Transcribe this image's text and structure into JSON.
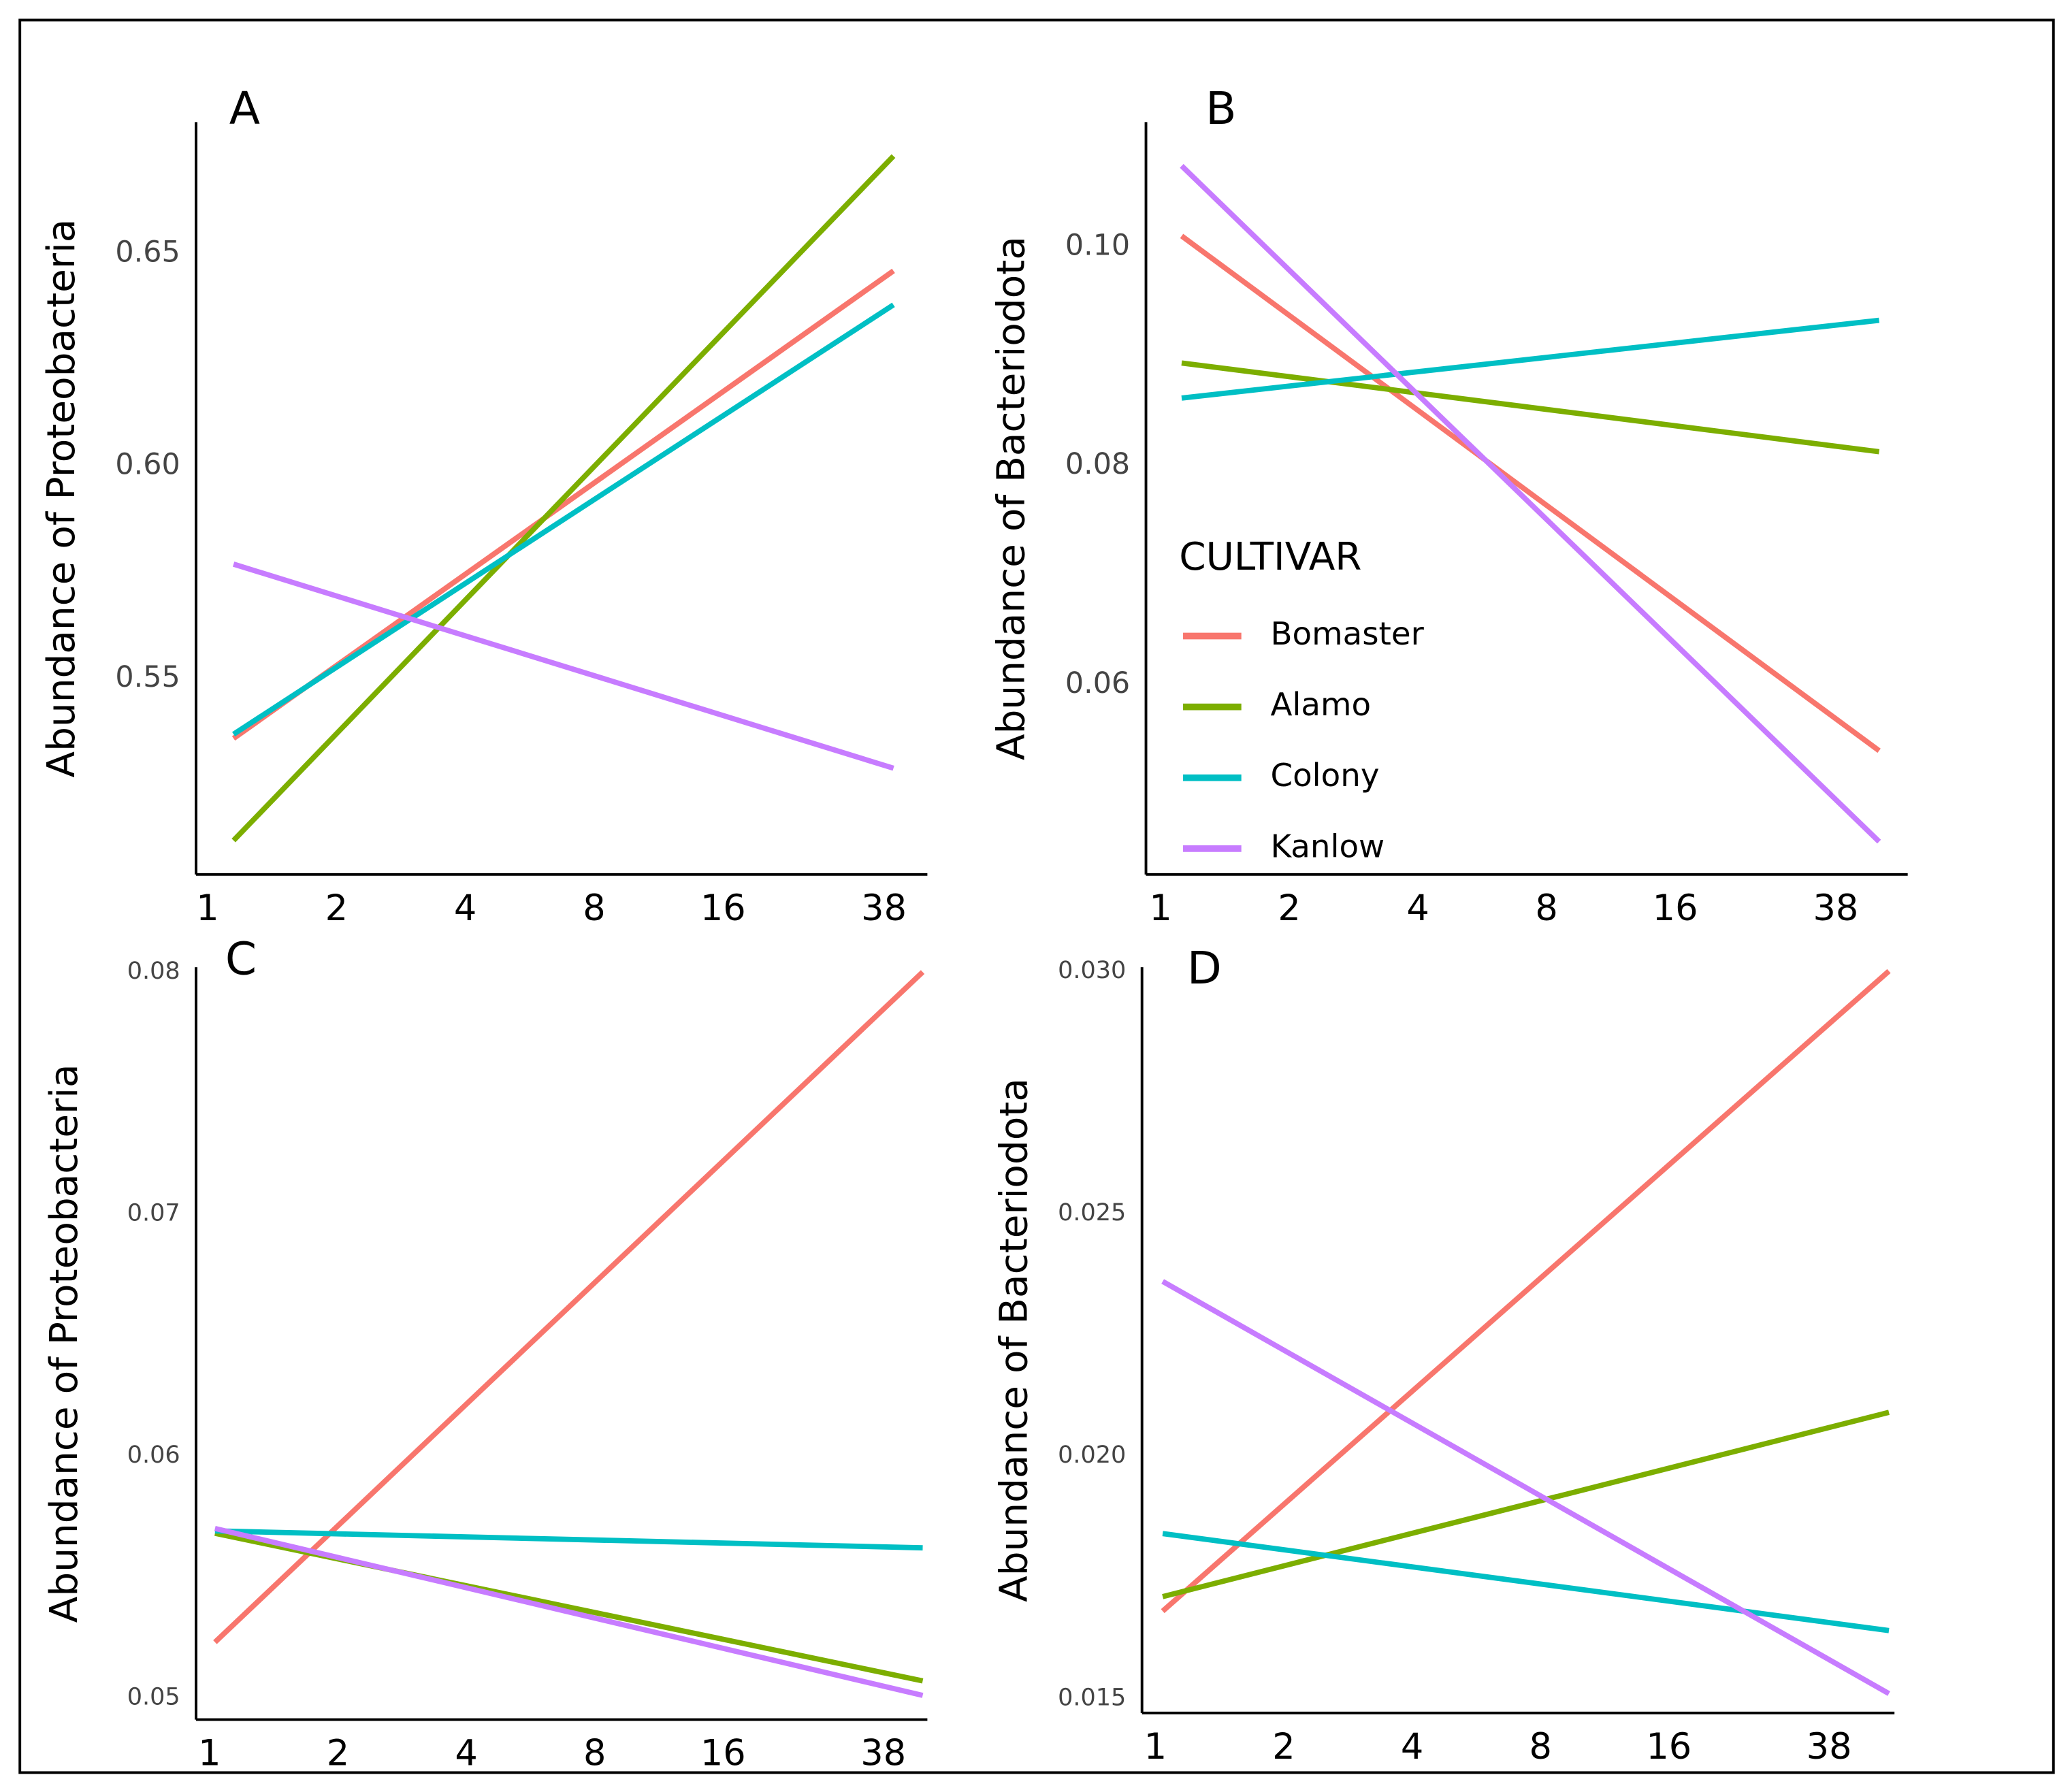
{
  "chart_data": [
    {
      "type": "line",
      "panel_label": "A",
      "y_label": "Abundance of Proteobacteria",
      "log_x": true,
      "x": [
        1.15,
        40
      ],
      "xlim": [
        0.94,
        48
      ],
      "xticks": [
        1,
        2,
        4,
        8,
        16,
        38
      ],
      "ylim": [
        0.504,
        0.681
      ],
      "yticks": [
        0.55,
        {
          "value": 0.6,
          "label": "0.60"
        },
        0.65
      ],
      "series": [
        {
          "name": "Bomaster",
          "color": "#F8766D",
          "values": [
            0.536,
            0.646
          ]
        },
        {
          "name": "Alamo",
          "color": "#7CAE00",
          "values": [
            0.512,
            0.673
          ]
        },
        {
          "name": "Colony",
          "color": "#00BFC4",
          "values": [
            0.537,
            0.638
          ]
        },
        {
          "name": "Kanlow",
          "color": "#C77CFF",
          "values": [
            0.577,
            0.529
          ]
        }
      ]
    },
    {
      "type": "line",
      "panel_label": "B",
      "y_label": "Abundance of Bacteriodota",
      "log_x": true,
      "x": [
        1.12,
        48
      ],
      "xlim": [
        0.924,
        56
      ],
      "xticks": [
        1,
        2,
        4,
        8,
        16,
        38
      ],
      "ylim": [
        0.0427,
        0.1114
      ],
      "yticks": [
        0.06,
        0.08,
        {
          "value": 0.1,
          "label": "0.10"
        }
      ],
      "legend": true,
      "legend_title": "CULTIVAR",
      "series": [
        {
          "name": "Bomaster",
          "color": "#F8766D",
          "values": [
            0.101,
            0.054
          ]
        },
        {
          "name": "Alamo",
          "color": "#7CAE00",
          "values": [
            0.0894,
            0.0813
          ]
        },
        {
          "name": "Colony",
          "color": "#00BFC4",
          "values": [
            0.0862,
            0.0933
          ]
        },
        {
          "name": "Kanlow",
          "color": "#C77CFF",
          "values": [
            0.1074,
            0.0457
          ]
        }
      ]
    },
    {
      "type": "line",
      "panel_label": "C",
      "y_label": "Abundance of Proteobacteria",
      "log_x": true,
      "x": [
        1.03,
        47
      ],
      "xlim": [
        0.93,
        48.2
      ],
      "xticks": [
        1,
        2,
        4,
        8,
        16,
        38
      ],
      "ylim": [
        0.0491,
        0.0802
      ],
      "yticks": [
        0.05,
        0.06,
        0.07,
        0.08
      ],
      "series": [
        {
          "name": "Bomaster",
          "color": "#F8766D",
          "values": [
            0.0523,
            0.08
          ]
        },
        {
          "name": "Alamo",
          "color": "#7CAE00",
          "values": [
            0.0568,
            0.0507
          ]
        },
        {
          "name": "Colony",
          "color": "#00BFC4",
          "values": [
            0.0569,
            0.0562
          ]
        },
        {
          "name": "Kanlow",
          "color": "#C77CFF",
          "values": [
            0.057,
            0.0501
          ]
        }
      ]
    },
    {
      "type": "line",
      "panel_label": "D",
      "y_label": "Abundance of Bacteriodota",
      "log_x": true,
      "x": [
        1.04,
        52.5
      ],
      "xlim": [
        0.93,
        54.1
      ],
      "xticks": [
        1,
        2,
        4,
        8,
        16,
        38
      ],
      "ylim": [
        0.0147,
        0.03008
      ],
      "yticks": [
        {
          "value": 0.015,
          "label": "0.015"
        },
        {
          "value": 0.02,
          "label": "0.020"
        },
        0.025,
        {
          "value": 0.03,
          "label": "0.030"
        }
      ],
      "series": [
        {
          "name": "Bomaster",
          "color": "#F8766D",
          "values": [
            0.0168,
            0.03
          ]
        },
        {
          "name": "Alamo",
          "color": "#7CAE00",
          "values": [
            0.0171,
            0.0209
          ]
        },
        {
          "name": "Colony",
          "color": "#00BFC4",
          "values": [
            0.0184,
            0.0164
          ]
        },
        {
          "name": "Kanlow",
          "color": "#C77CFF",
          "values": [
            0.0236,
            0.0151
          ]
        }
      ]
    }
  ]
}
